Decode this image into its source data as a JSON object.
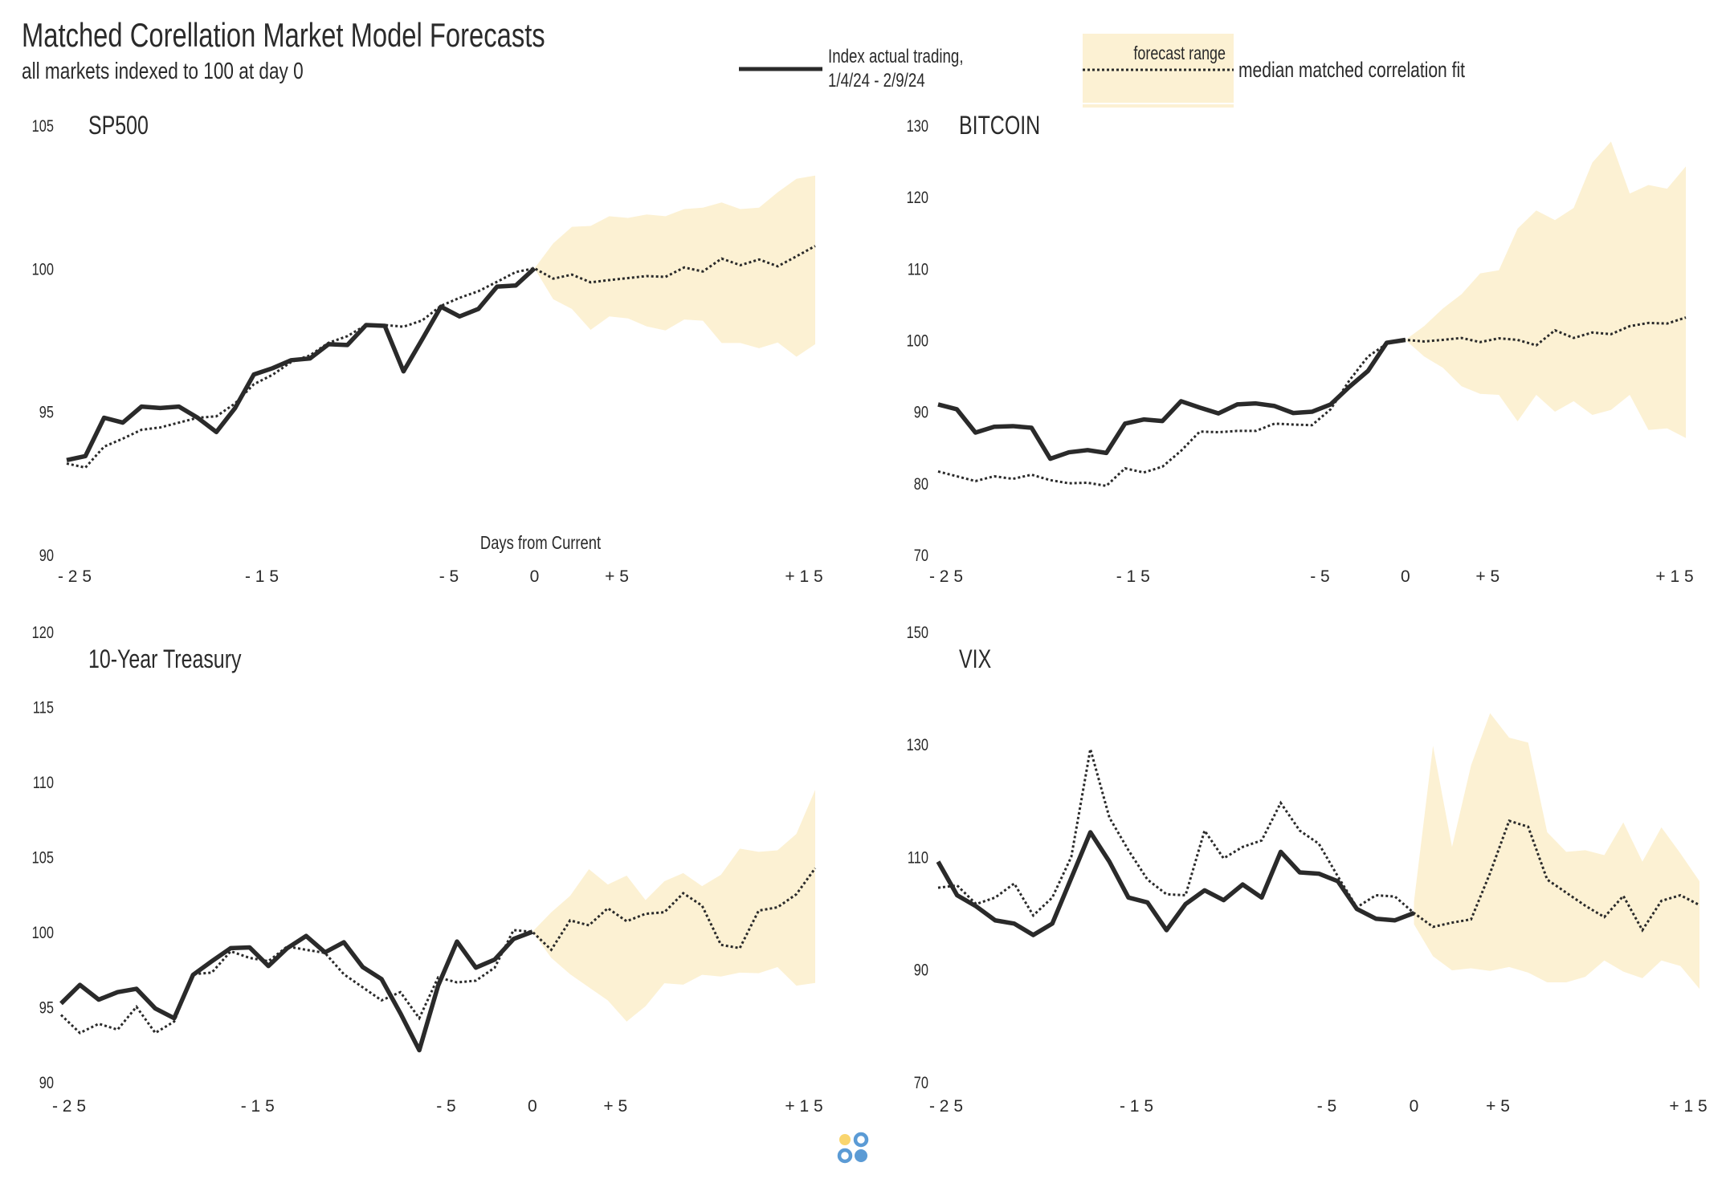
{
  "header": {
    "title": "Matched Corellation Market Model Forecasts",
    "subtitle": "all markets indexed to 100 at day 0"
  },
  "legend": {
    "actual_line1": "Index actual trading,",
    "actual_line2": "1/4/24 - 2/9/24",
    "forecast_range": "forecast range",
    "median_fit": "median matched correlation fit"
  },
  "colors": {
    "line": "#2a2a2a",
    "band": "#fcf1d3",
    "logo_yellow": "#f9d56e",
    "logo_blue": "#5b9bd5"
  },
  "chart_data": [
    {
      "type": "line",
      "title": "SP500",
      "xlabel": "Days from Current",
      "ylim": [
        90,
        105
      ],
      "yticks": [
        90,
        95,
        100,
        105
      ],
      "xticks": [
        {
          "v": -25,
          "label": "- 2 5"
        },
        {
          "v": -15,
          "label": "- 1 5"
        },
        {
          "v": -5,
          "label": "- 5"
        },
        {
          "v": 0,
          "label": "0"
        },
        {
          "v": 5,
          "label": "+ 5"
        },
        {
          "v": 15,
          "label": "+ 1 5"
        }
      ],
      "actual": [
        93.3,
        93.44,
        94.78,
        94.61,
        95.17,
        95.12,
        95.17,
        94.78,
        94.28,
        95.12,
        96.29,
        96.51,
        96.79,
        96.85,
        97.35,
        97.32,
        98.02,
        97.99,
        96.4,
        97.52,
        98.66,
        98.32,
        98.58,
        99.36,
        99.4,
        100
      ],
      "fit": [
        93.18,
        93.04,
        93.77,
        94.05,
        94.36,
        94.44,
        94.61,
        94.78,
        94.83,
        95.28,
        95.95,
        96.28,
        96.73,
        96.96,
        97.4,
        97.63,
        98.02,
        98.02,
        97.96,
        98.18,
        98.69,
        98.97,
        99.2,
        99.53,
        99.87,
        100
      ],
      "median": [
        100,
        99.64,
        99.78,
        99.51,
        99.59,
        99.66,
        99.73,
        99.7,
        100.03,
        99.89,
        100.34,
        100.11,
        100.31,
        100.07,
        100.42,
        100.78
      ],
      "upper": [
        100,
        100.87,
        101.45,
        101.48,
        101.82,
        101.76,
        101.88,
        101.82,
        102.07,
        102.12,
        102.3,
        102.07,
        102.12,
        102.66,
        103.13,
        103.24
      ],
      "lower": [
        100,
        98.92,
        98.58,
        97.85,
        98.32,
        98.25,
        97.97,
        97.83,
        98.21,
        98.17,
        97.39,
        97.39,
        97.21,
        97.41,
        96.91,
        97.35
      ]
    },
    {
      "type": "line",
      "title": "BITCOIN",
      "ylim": [
        70,
        130
      ],
      "yticks": [
        70,
        80,
        90,
        100,
        110,
        120,
        130
      ],
      "xticks": [
        {
          "v": -25,
          "label": "- 2 5"
        },
        {
          "v": -15,
          "label": "- 1 5"
        },
        {
          "v": -5,
          "label": "- 5"
        },
        {
          "v": 0,
          "label": "0"
        },
        {
          "v": 5,
          "label": "+ 5"
        },
        {
          "v": 15,
          "label": "+ 1 5"
        }
      ],
      "actual": [
        90.98,
        90.31,
        87.05,
        87.86,
        87.95,
        87.72,
        83.39,
        84.29,
        84.6,
        84.2,
        88.3,
        88.88,
        88.66,
        91.43,
        90.54,
        89.73,
        90.98,
        91.12,
        90.76,
        89.78,
        89.96,
        90.98,
        93.44,
        95.67,
        99.6,
        100
      ],
      "fit": [
        81.61,
        80.94,
        80.27,
        80.94,
        80.58,
        81.16,
        80.4,
        79.96,
        80.04,
        79.6,
        82.05,
        81.47,
        82.28,
        84.51,
        87.19,
        87.1,
        87.28,
        87.28,
        88.3,
        88.17,
        88.08,
        90.31,
        94.33,
        97.68,
        99.46,
        100
      ],
      "median": [
        100,
        99.78,
        100,
        100.27,
        99.69,
        100.22,
        100,
        99.24,
        101.34,
        100.27,
        101.03,
        100.8,
        101.92,
        102.37,
        102.28,
        103.13
      ],
      "upper": [
        100,
        101.92,
        104.38,
        106.38,
        109.29,
        109.73,
        115.54,
        118.08,
        116.74,
        118.44,
        124.78,
        127.72,
        120.45,
        121.65,
        121.12,
        124.24
      ],
      "lower": [
        100,
        97.68,
        96.12,
        93.53,
        92.46,
        92.32,
        88.62,
        92.32,
        89.96,
        91.43,
        89.51,
        90.22,
        92.32,
        87.41,
        87.63,
        86.29
      ]
    },
    {
      "type": "line",
      "title": "10-Year Treasury",
      "ylim": [
        90,
        120
      ],
      "yticks": [
        90,
        95,
        100,
        105,
        110,
        115,
        120
      ],
      "xticks": [
        {
          "v": -25,
          "label": "- 2 5"
        },
        {
          "v": -15,
          "label": "- 1 5"
        },
        {
          "v": -5,
          "label": "- 5"
        },
        {
          "v": 0,
          "label": "0"
        },
        {
          "v": 5,
          "label": "+ 5"
        },
        {
          "v": 15,
          "label": "+ 1 5"
        }
      ],
      "actual": [
        95.22,
        96.46,
        95.48,
        95.98,
        96.2,
        94.89,
        94.24,
        97.13,
        98.04,
        98.91,
        98.96,
        97.72,
        98.91,
        99.72,
        98.63,
        99.3,
        97.65,
        96.85,
        94.57,
        92.11,
        96.41,
        99.35,
        97.61,
        98.15,
        99.52,
        100
      ],
      "fit": [
        94.46,
        93.26,
        93.87,
        93.48,
        95,
        93.26,
        94.02,
        97.17,
        97.28,
        98.7,
        98.26,
        98.04,
        99.02,
        98.8,
        98.59,
        97.17,
        96.3,
        95.43,
        95.98,
        94.24,
        96.96,
        96.63,
        96.74,
        97.61,
        100.11,
        100
      ],
      "median": [
        100,
        98.8,
        100.76,
        100.43,
        101.57,
        100.7,
        101.2,
        101.3,
        102.57,
        101.74,
        99.13,
        98.91,
        101.41,
        101.63,
        102.5,
        104.24
      ],
      "upper": [
        100,
        101.3,
        102.39,
        104.17,
        103.15,
        103.74,
        102.11,
        103.37,
        103.91,
        103.04,
        103.8,
        105.54,
        105.33,
        105.43,
        106.52,
        109.46
      ],
      "lower": [
        100,
        98.26,
        97.17,
        96.3,
        95.43,
        94.02,
        95.04,
        96.57,
        96.48,
        97.13,
        97.02,
        97.28,
        97.24,
        97.65,
        96.41,
        96.59
      ]
    },
    {
      "type": "line",
      "title": "VIX",
      "ylim": [
        70,
        150
      ],
      "yticks": [
        70,
        90,
        110,
        130,
        150
      ],
      "xticks": [
        {
          "v": -25,
          "label": "- 2 5"
        },
        {
          "v": -15,
          "label": "- 1 5"
        },
        {
          "v": -5,
          "label": "- 5"
        },
        {
          "v": 0,
          "label": "0"
        },
        {
          "v": 5,
          "label": "+ 5"
        },
        {
          "v": 15,
          "label": "+ 1 5"
        }
      ],
      "actual": [
        109.13,
        103.16,
        101.19,
        98.7,
        98.12,
        96.09,
        98.12,
        106.23,
        114.35,
        109.13,
        102.75,
        101.88,
        96.96,
        101.59,
        104.03,
        102.29,
        105.07,
        102.75,
        110.87,
        107.22,
        106.99,
        105.65,
        100.72,
        98.99,
        98.7,
        100
      ],
      "fit": [
        104.49,
        104.9,
        101.59,
        102.75,
        105.25,
        99.57,
        102.75,
        110,
        129.13,
        116.96,
        111.16,
        105.94,
        103.33,
        103.16,
        114.64,
        109.71,
        111.74,
        112.9,
        119.57,
        114.64,
        112.32,
        106.52,
        101.01,
        103.16,
        102.93,
        100
      ],
      "median": [
        100,
        97.54,
        98.29,
        98.87,
        107.1,
        116.38,
        115.33,
        105.94,
        103.62,
        101.3,
        99.28,
        103.04,
        96.96,
        102.17,
        103.16,
        101.42
      ],
      "upper": [
        102,
        129.71,
        111.74,
        126.23,
        135.51,
        131.16,
        130.29,
        114.35,
        110.87,
        111.16,
        110.29,
        116.09,
        109.13,
        115.22,
        110.58,
        105.65
      ],
      "lower": [
        98,
        92.32,
        89.83,
        90.17,
        89.71,
        90.41,
        89.42,
        87.68,
        87.68,
        88.67,
        91.57,
        89.59,
        88.41,
        91.57,
        90.58,
        86.52
      ]
    }
  ]
}
